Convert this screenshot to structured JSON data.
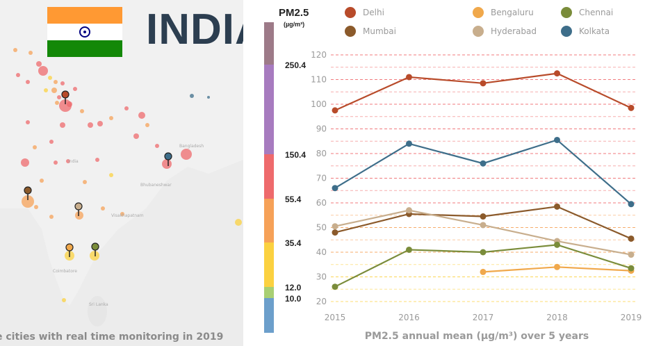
{
  "header": {
    "country": "INDIA",
    "flag_colors": {
      "top": "#FF9933",
      "middle": "#FFFFFF",
      "bottom": "#138808",
      "chakra": "#000080"
    }
  },
  "map": {
    "caption": "e cities with real time monitoring in 2019",
    "place_labels": [
      "Bangladesh",
      "India",
      "Bhubaneshwar",
      "Visakhapatnam",
      "Coimbatore",
      "Sri Lanka"
    ]
  },
  "scale": {
    "title": "PM2.5",
    "unit": "(µg/m³)",
    "bands": [
      {
        "from": 250.4,
        "to": null,
        "color": "#9d7a88"
      },
      {
        "from": 150.4,
        "to": 250.4,
        "color": "#a77bbf"
      },
      {
        "from": 55.4,
        "to": 150.4,
        "color": "#ee6a6c"
      },
      {
        "from": 35.4,
        "to": 55.4,
        "color": "#f6a158"
      },
      {
        "from": 12.0,
        "to": 35.4,
        "color": "#fbd140"
      },
      {
        "from": 10.0,
        "to": 12.0,
        "color": "#a8cf73"
      },
      {
        "from": null,
        "to": 10.0,
        "color": "#6c9fcb"
      }
    ],
    "tick_labels": [
      "250.4",
      "150.4",
      "55.4",
      "35.4",
      "12.0",
      "10.0"
    ]
  },
  "chart_data": {
    "type": "line",
    "title": "PM2.5 annual mean (µg/m³) over 5 years",
    "xlabel": "",
    "ylabel": "",
    "x": [
      2015,
      2016,
      2017,
      2018,
      2019
    ],
    "ylim": [
      20,
      120
    ],
    "yticks": [
      20,
      30,
      40,
      50,
      60,
      70,
      80,
      90,
      100,
      110,
      120
    ],
    "grid": true,
    "legend_position": "top",
    "series": [
      {
        "name": "Delhi",
        "color": "#b84b2a",
        "values": [
          97.5,
          111,
          108.5,
          112.5,
          98.5
        ]
      },
      {
        "name": "Mumbai",
        "color": "#8b5a2b",
        "values": [
          48,
          55.5,
          54.5,
          58.5,
          45.5
        ]
      },
      {
        "name": "Bengaluru",
        "color": "#f0a84b",
        "values": [
          null,
          null,
          32,
          34,
          32.5
        ]
      },
      {
        "name": "Hyderabad",
        "color": "#c8ae8d",
        "values": [
          50.5,
          57,
          51,
          44.5,
          39
        ]
      },
      {
        "name": "Chennai",
        "color": "#7a8c3a",
        "values": [
          26,
          41,
          40,
          43,
          33.5
        ]
      },
      {
        "name": "Kolkata",
        "color": "#3e6e8a",
        "values": [
          66,
          84,
          76,
          85.5,
          59.5
        ]
      }
    ]
  }
}
